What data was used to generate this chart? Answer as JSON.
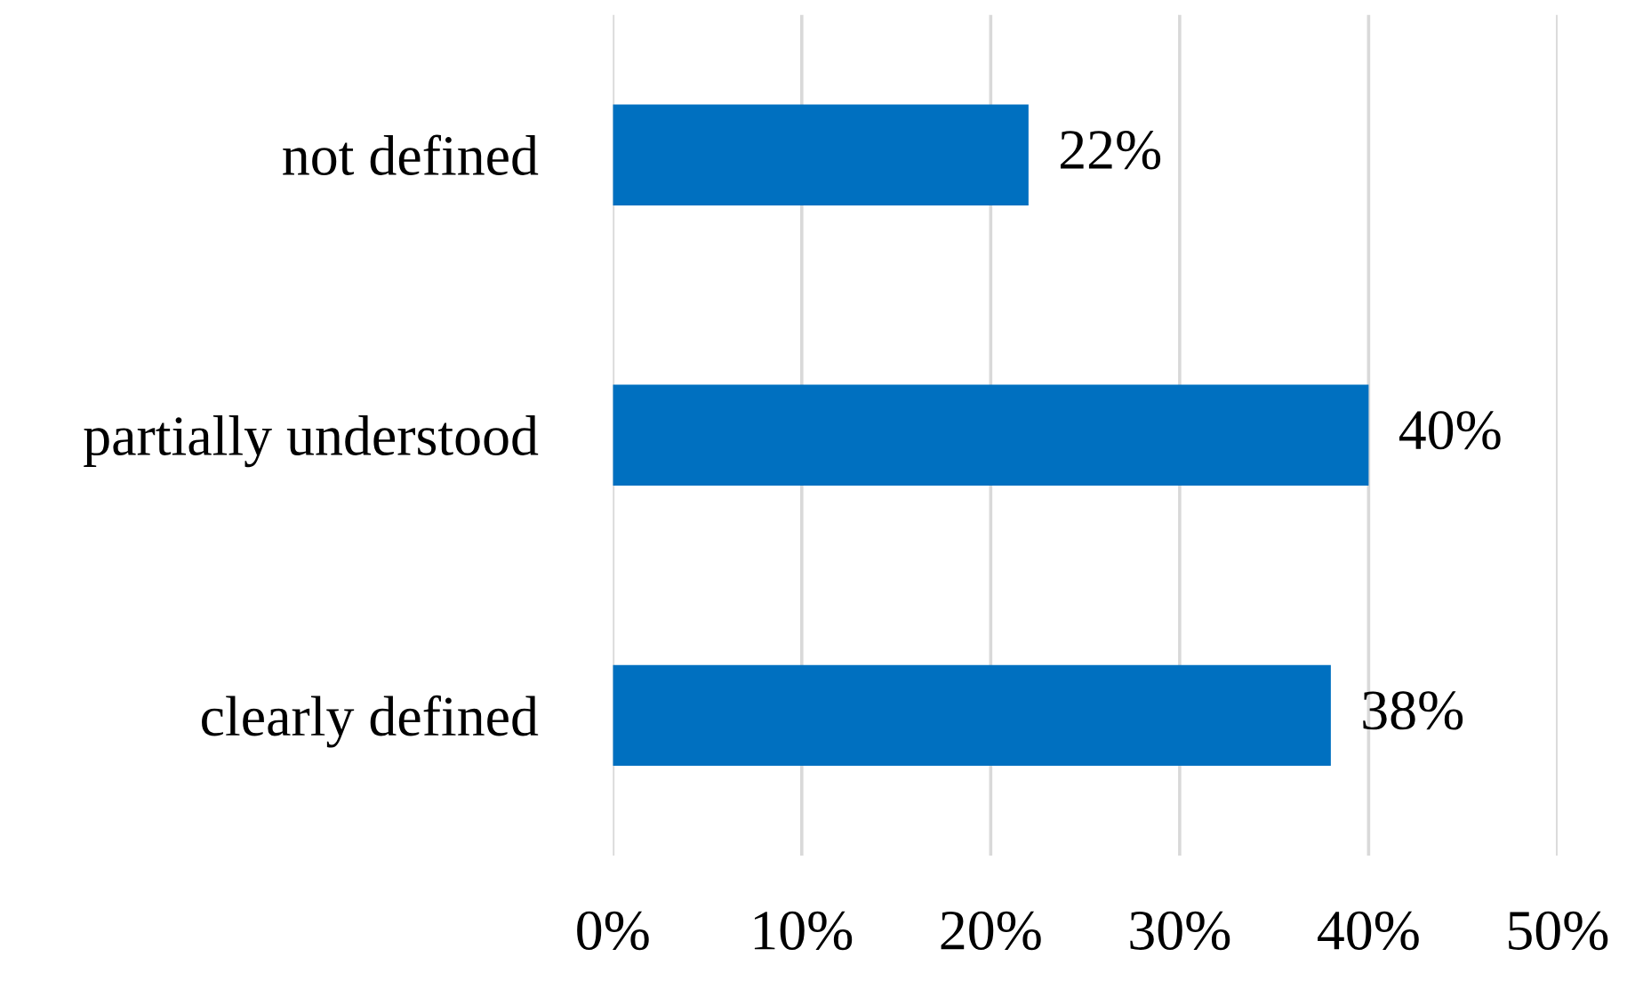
{
  "chart_data": {
    "type": "bar",
    "orientation": "horizontal",
    "categories": [
      "not defined",
      "partially understood",
      "clearly defined"
    ],
    "values": [
      22,
      40,
      38
    ],
    "value_labels": [
      "22%",
      "40%",
      "38%"
    ],
    "color": "#0070c0",
    "xlim": [
      0,
      50
    ],
    "xticks": [
      {
        "value": 0,
        "label": "0%"
      },
      {
        "value": 10,
        "label": "10%"
      },
      {
        "value": 20,
        "label": "20%"
      },
      {
        "value": 30,
        "label": "30%"
      },
      {
        "value": 40,
        "label": "40%"
      },
      {
        "value": 50,
        "label": "50%"
      }
    ],
    "grid": "x"
  }
}
